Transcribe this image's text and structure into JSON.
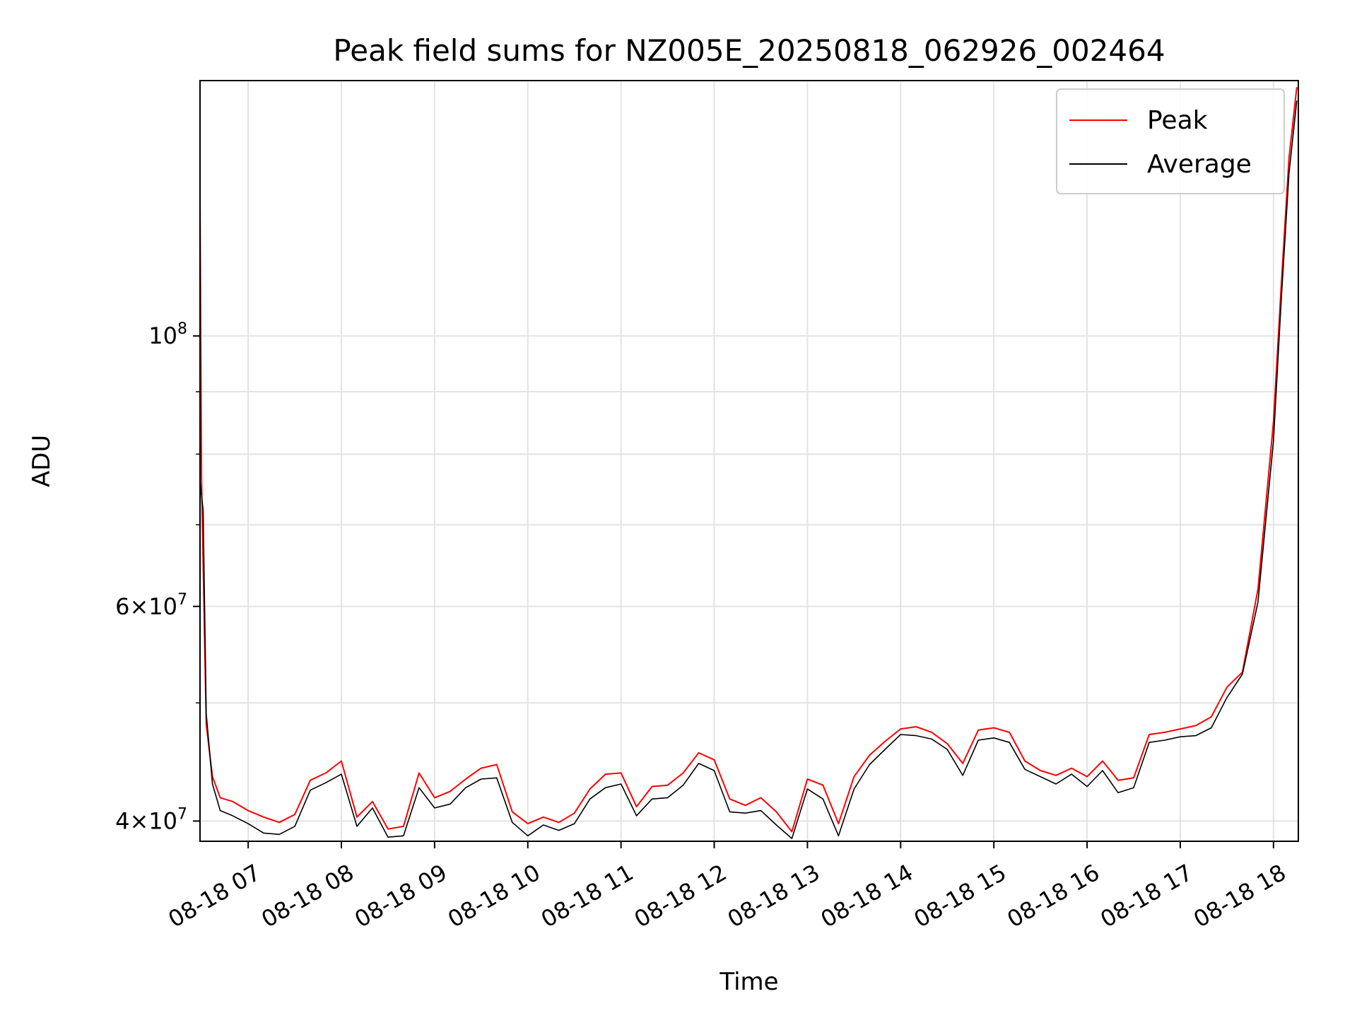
{
  "chart_data": {
    "type": "line",
    "title": "Peak field sums for NZ005E_20250818_062926_002464",
    "xlabel": "Time",
    "ylabel": "ADU",
    "y_scale": "log",
    "ylim": [
      38500000,
      162000000
    ],
    "xlim": [
      "2025-08-18 06:29",
      "2025-08-18 18:16"
    ],
    "x_ticks": [
      "2025-08-18 07:00",
      "2025-08-18 08:00",
      "2025-08-18 09:00",
      "2025-08-18 10:00",
      "2025-08-18 11:00",
      "2025-08-18 12:00",
      "2025-08-18 13:00",
      "2025-08-18 14:00",
      "2025-08-18 15:00",
      "2025-08-18 16:00",
      "2025-08-18 17:00",
      "2025-08-18 18:00"
    ],
    "x_tick_labels": [
      "08-18 07",
      "08-18 08",
      "08-18 09",
      "08-18 10",
      "08-18 11",
      "08-18 12",
      "08-18 13",
      "08-18 14",
      "08-18 15",
      "08-18 16",
      "08-18 17",
      "08-18 18"
    ],
    "y_ticks": [
      {
        "value": 100000000,
        "mantissa": "",
        "exponent": "8"
      },
      {
        "value": 60000000,
        "mantissa": "6",
        "exponent": "7"
      },
      {
        "value": 40000000,
        "mantissa": "4",
        "exponent": "7"
      }
    ],
    "y_minor_ticks": [
      50000000,
      70000000,
      80000000,
      90000000
    ],
    "grid": true,
    "legend_position": "top-right",
    "series": [
      {
        "name": "Peak",
        "color": "#ff0000",
        "points": [
          [
            "2025-08-18 06:29",
            130000000
          ],
          [
            "2025-08-18 06:30",
            76000000
          ],
          [
            "2025-08-18 06:33",
            48000000
          ],
          [
            "2025-08-18 06:37",
            43500000
          ],
          [
            "2025-08-18 06:42",
            41800000
          ],
          [
            "2025-08-18 06:50",
            41500000
          ],
          [
            "2025-08-18 07:00",
            40800000
          ],
          [
            "2025-08-18 07:10",
            40300000
          ],
          [
            "2025-08-18 07:20",
            39900000
          ],
          [
            "2025-08-18 07:30",
            40500000
          ],
          [
            "2025-08-18 07:40",
            43200000
          ],
          [
            "2025-08-18 07:50",
            43800000
          ],
          [
            "2025-08-18 08:00",
            44800000
          ],
          [
            "2025-08-18 08:10",
            40300000
          ],
          [
            "2025-08-18 08:20",
            41500000
          ],
          [
            "2025-08-18 08:30",
            39400000
          ],
          [
            "2025-08-18 08:40",
            39600000
          ],
          [
            "2025-08-18 08:50",
            43800000
          ],
          [
            "2025-08-18 09:00",
            41800000
          ],
          [
            "2025-08-18 09:10",
            42300000
          ],
          [
            "2025-08-18 09:20",
            43300000
          ],
          [
            "2025-08-18 09:30",
            44200000
          ],
          [
            "2025-08-18 09:40",
            44500000
          ],
          [
            "2025-08-18 09:50",
            40700000
          ],
          [
            "2025-08-18 10:00",
            39800000
          ],
          [
            "2025-08-18 10:10",
            40300000
          ],
          [
            "2025-08-18 10:20",
            39900000
          ],
          [
            "2025-08-18 10:30",
            40600000
          ],
          [
            "2025-08-18 10:40",
            42500000
          ],
          [
            "2025-08-18 10:50",
            43700000
          ],
          [
            "2025-08-18 11:00",
            43800000
          ],
          [
            "2025-08-18 11:10",
            41100000
          ],
          [
            "2025-08-18 11:20",
            42700000
          ],
          [
            "2025-08-18 11:30",
            42800000
          ],
          [
            "2025-08-18 11:40",
            43800000
          ],
          [
            "2025-08-18 11:50",
            45500000
          ],
          [
            "2025-08-18 12:00",
            44900000
          ],
          [
            "2025-08-18 12:10",
            41700000
          ],
          [
            "2025-08-18 12:20",
            41200000
          ],
          [
            "2025-08-18 12:30",
            41800000
          ],
          [
            "2025-08-18 12:40",
            40700000
          ],
          [
            "2025-08-18 12:50",
            39200000
          ],
          [
            "2025-08-18 13:00",
            43300000
          ],
          [
            "2025-08-18 13:10",
            42800000
          ],
          [
            "2025-08-18 13:20",
            39800000
          ],
          [
            "2025-08-18 13:30",
            43500000
          ],
          [
            "2025-08-18 13:40",
            45300000
          ],
          [
            "2025-08-18 13:50",
            46500000
          ],
          [
            "2025-08-18 14:00",
            47600000
          ],
          [
            "2025-08-18 14:10",
            47800000
          ],
          [
            "2025-08-18 14:20",
            47300000
          ],
          [
            "2025-08-18 14:30",
            46300000
          ],
          [
            "2025-08-18 14:40",
            44600000
          ],
          [
            "2025-08-18 14:50",
            47500000
          ],
          [
            "2025-08-18 15:00",
            47700000
          ],
          [
            "2025-08-18 15:10",
            47300000
          ],
          [
            "2025-08-18 15:20",
            44800000
          ],
          [
            "2025-08-18 15:30",
            44000000
          ],
          [
            "2025-08-18 15:40",
            43600000
          ],
          [
            "2025-08-18 15:50",
            44200000
          ],
          [
            "2025-08-18 16:00",
            43500000
          ],
          [
            "2025-08-18 16:10",
            44800000
          ],
          [
            "2025-08-18 16:20",
            43200000
          ],
          [
            "2025-08-18 16:30",
            43400000
          ],
          [
            "2025-08-18 16:40",
            47100000
          ],
          [
            "2025-08-18 16:50",
            47300000
          ],
          [
            "2025-08-18 17:00",
            47600000
          ],
          [
            "2025-08-18 17:10",
            47900000
          ],
          [
            "2025-08-18 17:20",
            48700000
          ],
          [
            "2025-08-18 17:30",
            51500000
          ],
          [
            "2025-08-18 17:40",
            53000000
          ],
          [
            "2025-08-18 17:50",
            62000000
          ],
          [
            "2025-08-18 18:00",
            85000000
          ],
          [
            "2025-08-18 18:05",
            110000000
          ],
          [
            "2025-08-18 18:10",
            140000000
          ],
          [
            "2025-08-18 18:15",
            160000000
          ]
        ]
      },
      {
        "name": "Average",
        "color": "#000000",
        "points": [
          [
            "2025-08-18 06:29",
            76000000
          ],
          [
            "2025-08-18 06:31",
            72000000
          ],
          [
            "2025-08-18 06:33",
            49000000
          ],
          [
            "2025-08-18 06:37",
            42900000
          ],
          [
            "2025-08-18 06:42",
            40800000
          ],
          [
            "2025-08-18 06:50",
            40400000
          ],
          [
            "2025-08-18 07:00",
            39800000
          ],
          [
            "2025-08-18 07:10",
            39100000
          ],
          [
            "2025-08-18 07:20",
            39000000
          ],
          [
            "2025-08-18 07:30",
            39600000
          ],
          [
            "2025-08-18 07:40",
            42400000
          ],
          [
            "2025-08-18 07:50",
            43000000
          ],
          [
            "2025-08-18 08:00",
            43700000
          ],
          [
            "2025-08-18 08:10",
            39600000
          ],
          [
            "2025-08-18 08:20",
            41000000
          ],
          [
            "2025-08-18 08:30",
            38800000
          ],
          [
            "2025-08-18 08:40",
            38900000
          ],
          [
            "2025-08-18 08:50",
            42600000
          ],
          [
            "2025-08-18 09:00",
            41000000
          ],
          [
            "2025-08-18 09:10",
            41300000
          ],
          [
            "2025-08-18 09:20",
            42600000
          ],
          [
            "2025-08-18 09:30",
            43300000
          ],
          [
            "2025-08-18 09:40",
            43400000
          ],
          [
            "2025-08-18 09:50",
            39900000
          ],
          [
            "2025-08-18 10:00",
            38900000
          ],
          [
            "2025-08-18 10:10",
            39700000
          ],
          [
            "2025-08-18 10:20",
            39300000
          ],
          [
            "2025-08-18 10:30",
            39800000
          ],
          [
            "2025-08-18 10:40",
            41700000
          ],
          [
            "2025-08-18 10:50",
            42600000
          ],
          [
            "2025-08-18 11:00",
            42900000
          ],
          [
            "2025-08-18 11:10",
            40400000
          ],
          [
            "2025-08-18 11:20",
            41700000
          ],
          [
            "2025-08-18 11:30",
            41800000
          ],
          [
            "2025-08-18 11:40",
            42800000
          ],
          [
            "2025-08-18 11:50",
            44600000
          ],
          [
            "2025-08-18 12:00",
            44000000
          ],
          [
            "2025-08-18 12:10",
            40700000
          ],
          [
            "2025-08-18 12:20",
            40600000
          ],
          [
            "2025-08-18 12:30",
            40800000
          ],
          [
            "2025-08-18 12:40",
            39700000
          ],
          [
            "2025-08-18 12:50",
            38700000
          ],
          [
            "2025-08-18 13:00",
            42500000
          ],
          [
            "2025-08-18 13:10",
            41700000
          ],
          [
            "2025-08-18 13:20",
            38900000
          ],
          [
            "2025-08-18 13:30",
            42500000
          ],
          [
            "2025-08-18 13:40",
            44500000
          ],
          [
            "2025-08-18 13:50",
            45800000
          ],
          [
            "2025-08-18 14:00",
            47100000
          ],
          [
            "2025-08-18 14:10",
            47000000
          ],
          [
            "2025-08-18 14:20",
            46700000
          ],
          [
            "2025-08-18 14:30",
            45800000
          ],
          [
            "2025-08-18 14:40",
            43600000
          ],
          [
            "2025-08-18 14:50",
            46600000
          ],
          [
            "2025-08-18 15:00",
            46800000
          ],
          [
            "2025-08-18 15:10",
            46400000
          ],
          [
            "2025-08-18 15:20",
            44100000
          ],
          [
            "2025-08-18 15:30",
            43500000
          ],
          [
            "2025-08-18 15:40",
            42900000
          ],
          [
            "2025-08-18 15:50",
            43700000
          ],
          [
            "2025-08-18 16:00",
            42700000
          ],
          [
            "2025-08-18 16:10",
            44000000
          ],
          [
            "2025-08-18 16:20",
            42200000
          ],
          [
            "2025-08-18 16:30",
            42600000
          ],
          [
            "2025-08-18 16:40",
            46400000
          ],
          [
            "2025-08-18 16:50",
            46600000
          ],
          [
            "2025-08-18 17:00",
            46900000
          ],
          [
            "2025-08-18 17:10",
            47000000
          ],
          [
            "2025-08-18 17:20",
            47700000
          ],
          [
            "2025-08-18 17:30",
            50500000
          ],
          [
            "2025-08-18 17:40",
            52800000
          ],
          [
            "2025-08-18 17:50",
            60500000
          ],
          [
            "2025-08-18 18:00",
            82000000
          ],
          [
            "2025-08-18 18:05",
            107000000
          ],
          [
            "2025-08-18 18:10",
            136000000
          ],
          [
            "2025-08-18 18:15",
            156000000
          ]
        ]
      }
    ]
  }
}
